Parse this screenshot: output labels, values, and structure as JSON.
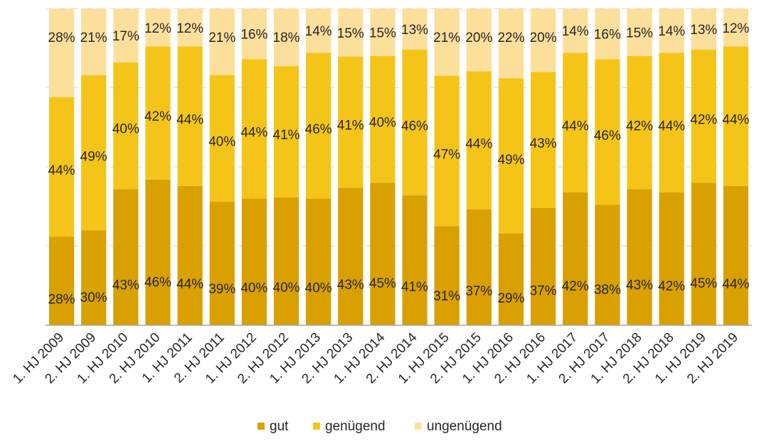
{
  "chart_data": {
    "type": "bar",
    "stacked": true,
    "percent_stacked": true,
    "title": "",
    "xlabel": "",
    "ylabel": "",
    "ylim": [
      0,
      100
    ],
    "grid": true,
    "legend_position": "bottom",
    "categories": [
      "1. HJ 2009",
      "2. HJ 2009",
      "1. HJ 2010",
      "2. HJ 2010",
      "1. HJ 2011",
      "2. HJ 2011",
      "1. HJ 2012",
      "2. HJ 2012",
      "1. HJ 2013",
      "2. HJ 2013",
      "1. HJ 2014",
      "2. HJ 2014",
      "1. HJ 2015",
      "2. HJ 2015",
      "1. HJ 2016",
      "2. HJ 2016",
      "1. HJ 2017",
      "2. HJ 2017",
      "1. HJ 2018",
      "2. HJ 2018",
      "1. HJ 2019",
      "2. HJ 2019"
    ],
    "series": [
      {
        "name": "gut",
        "color": "#d9a000",
        "values": [
          28,
          30,
          43,
          46,
          44,
          39,
          40,
          40,
          40,
          43,
          45,
          41,
          31,
          37,
          29,
          37,
          42,
          38,
          43,
          42,
          45,
          44
        ]
      },
      {
        "name": "genügend",
        "color": "#f4c518",
        "values": [
          44,
          49,
          40,
          42,
          44,
          40,
          44,
          41,
          46,
          41,
          40,
          46,
          47,
          44,
          49,
          43,
          44,
          46,
          42,
          44,
          42,
          44
        ]
      },
      {
        "name": "ungenügend",
        "color": "#fddf9c",
        "values": [
          28,
          21,
          17,
          12,
          12,
          21,
          16,
          18,
          14,
          15,
          15,
          13,
          21,
          20,
          22,
          20,
          14,
          16,
          15,
          14,
          13,
          12
        ]
      }
    ],
    "label_suffix": "%"
  }
}
